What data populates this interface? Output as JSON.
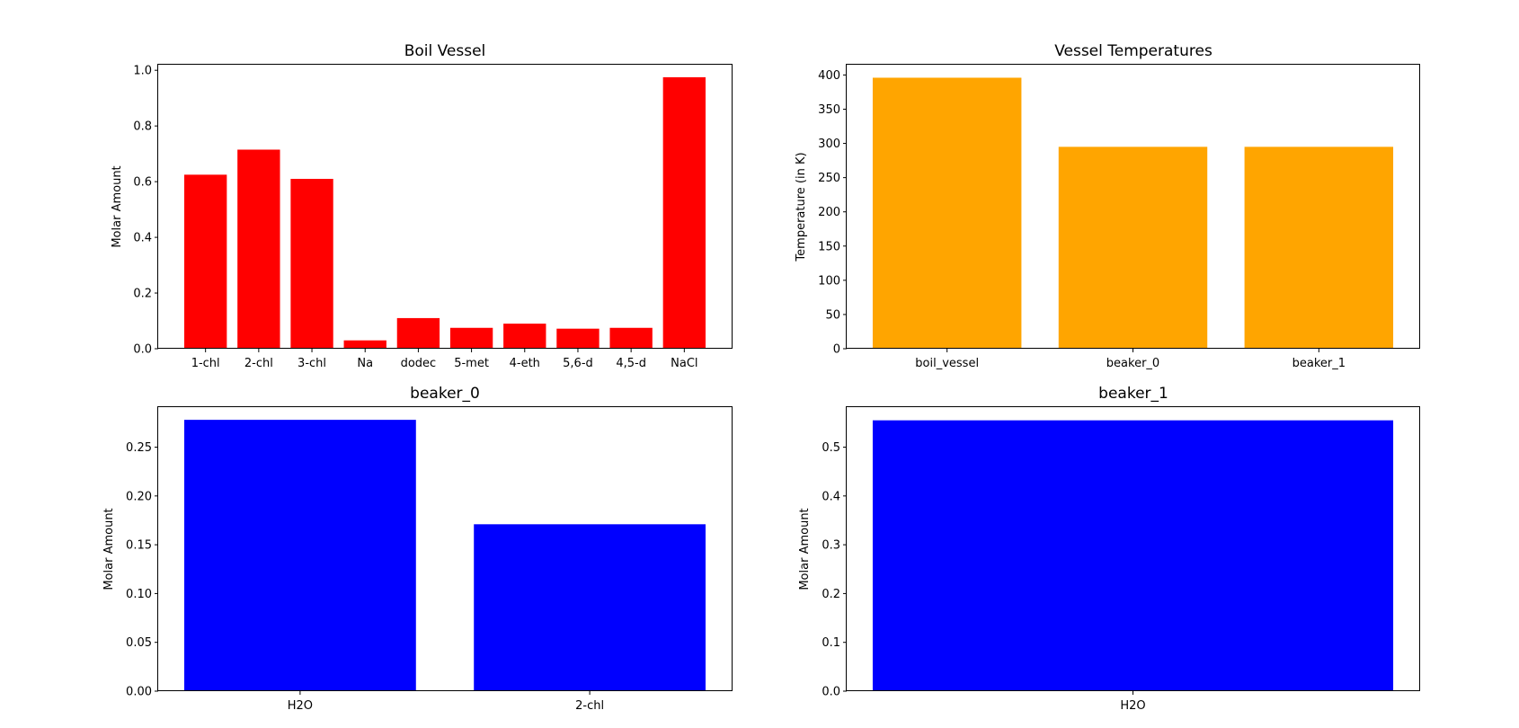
{
  "chart_data": [
    {
      "type": "bar",
      "title": "Boil Vessel",
      "xlabel": "",
      "ylabel": "Molar Amount",
      "categories": [
        "1-chl",
        "2-chl",
        "3-chl",
        "Na",
        "dodec",
        "5-met",
        "4-eth",
        "5,6-d",
        "4,5-d",
        "NaCl"
      ],
      "values": [
        0.625,
        0.715,
        0.61,
        0.03,
        0.11,
        0.075,
        0.09,
        0.072,
        0.075,
        0.975
      ],
      "color": "#ff0000",
      "ylim": [
        0,
        1.02
      ],
      "yticks": [
        "0.0",
        "0.2",
        "0.4",
        "0.6",
        "0.8",
        "1.0"
      ],
      "grid": false
    },
    {
      "type": "bar",
      "title": "Vessel Temperatures",
      "xlabel": "",
      "ylabel": "Temperature (in K)",
      "categories": [
        "boil_vessel",
        "beaker_0",
        "beaker_1"
      ],
      "values": [
        396,
        295,
        295
      ],
      "color": "#ffa500",
      "ylim": [
        0,
        415
      ],
      "yticks": [
        "0",
        "50",
        "100",
        "150",
        "200",
        "250",
        "300",
        "350",
        "400"
      ],
      "grid": false
    },
    {
      "type": "bar",
      "title": "beaker_0",
      "xlabel": "",
      "ylabel": "Molar Amount",
      "categories": [
        "H2O",
        "2-chl"
      ],
      "values": [
        0.278,
        0.171
      ],
      "color": "#0000ff",
      "ylim": [
        0,
        0.291
      ],
      "yticks": [
        "0.00",
        "0.05",
        "0.10",
        "0.15",
        "0.20",
        "0.25"
      ],
      "grid": false
    },
    {
      "type": "bar",
      "title": "beaker_1",
      "xlabel": "",
      "ylabel": "Molar Amount",
      "categories": [
        "H2O"
      ],
      "values": [
        0.555
      ],
      "color": "#0000ff",
      "ylim": [
        0,
        0.582
      ],
      "yticks": [
        "0.0",
        "0.1",
        "0.2",
        "0.3",
        "0.4",
        "0.5"
      ],
      "grid": false
    }
  ]
}
